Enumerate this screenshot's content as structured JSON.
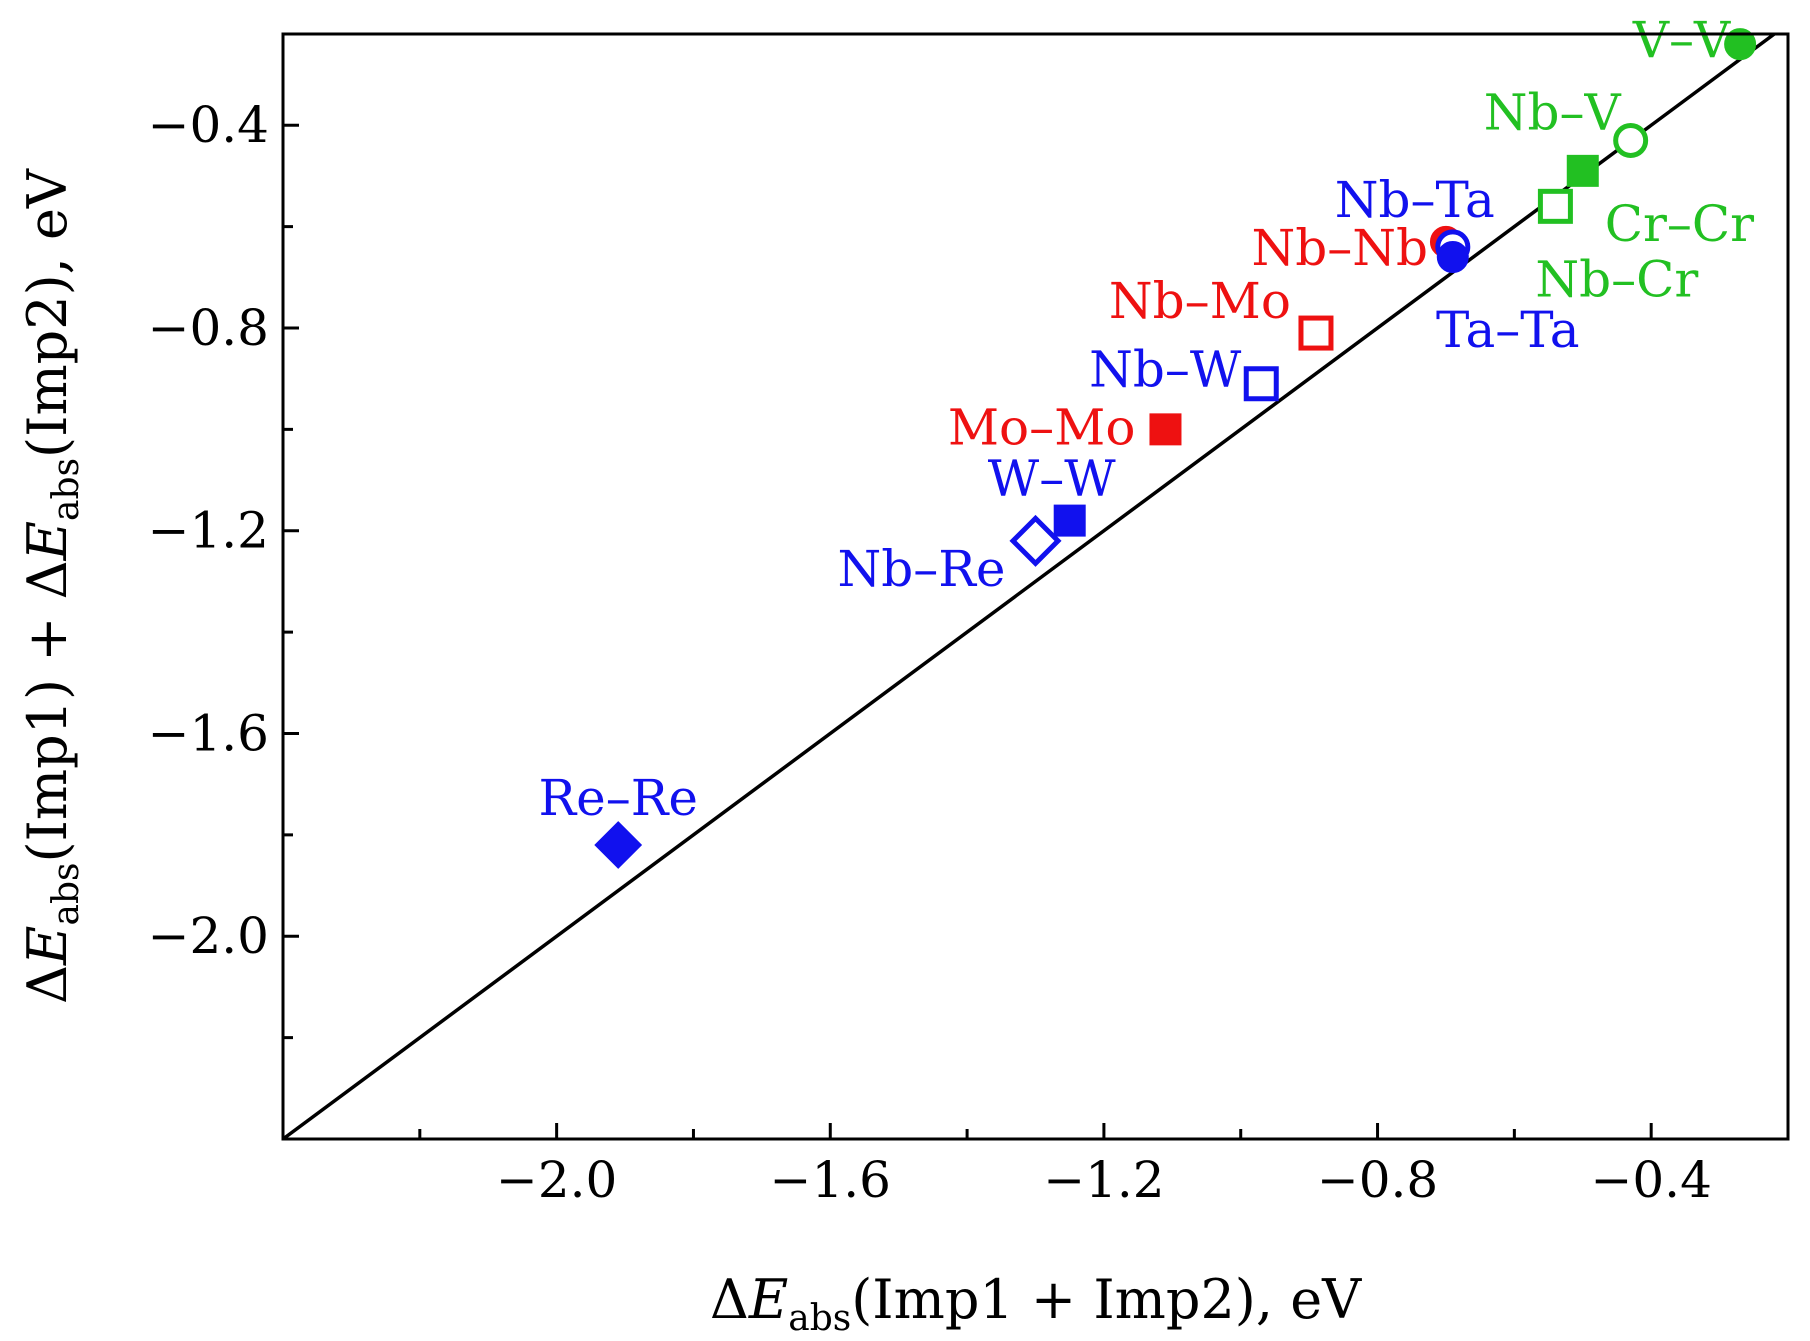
{
  "chart_data": {
    "type": "scatter",
    "xlabel": {
      "prefix": "ΔE",
      "sub": "abs",
      "suffix": "(Imp1 + Imp2), eV"
    },
    "ylabel": {
      "prefix": "ΔE",
      "sub": "abs",
      "suffix": "(Imp1) + ΔE",
      "sub2": "abs",
      "suffix2": "(Imp2), eV"
    },
    "xlim": [
      -2.4,
      -0.2
    ],
    "ylim": [
      -2.4,
      -0.22
    ],
    "x_ticks": [
      -2.0,
      -1.6,
      -1.2,
      -0.8,
      -0.4
    ],
    "x_tick_labels": [
      "−2.0",
      "−1.6",
      "−1.2",
      "−0.8",
      "−0.4"
    ],
    "x_minor_ticks": [
      -2.2,
      -1.8,
      -1.4,
      -1.0,
      -0.6
    ],
    "y_ticks": [
      -2.0,
      -1.6,
      -1.2,
      -0.8,
      -0.4
    ],
    "y_tick_labels": [
      "−2.0",
      "−1.6",
      "−1.2",
      "−0.8",
      "−0.4"
    ],
    "y_minor_ticks": [
      -2.2,
      -1.8,
      -1.4,
      -1.0,
      -0.6
    ],
    "reference_line": "y = x",
    "colors": {
      "group_V": "#22c022",
      "group_Nb": "#ee1111",
      "group_Ta": "#1111ee",
      "line": "#000000"
    },
    "points": [
      {
        "label": "V–V",
        "x": -0.27,
        "y": -0.24,
        "marker": "circle",
        "filled": true,
        "color": "#22c022"
      },
      {
        "label": "Nb–V",
        "x": -0.43,
        "y": -0.43,
        "marker": "circle",
        "filled": false,
        "color": "#22c022"
      },
      {
        "label": "Cr–Cr",
        "x": -0.5,
        "y": -0.49,
        "marker": "square",
        "filled": true,
        "color": "#22c022"
      },
      {
        "label": "Nb–Cr",
        "x": -0.54,
        "y": -0.56,
        "marker": "square",
        "filled": false,
        "color": "#22c022"
      },
      {
        "label": "Nb–Nb",
        "x": -0.7,
        "y": -0.63,
        "marker": "circle",
        "filled": true,
        "color": "#ee1111"
      },
      {
        "label": "Nb–Ta",
        "x": -0.69,
        "y": -0.64,
        "marker": "circle",
        "filled": false,
        "color": "#1111ee"
      },
      {
        "label": "Ta–Ta",
        "x": -0.69,
        "y": -0.66,
        "marker": "circle",
        "filled": true,
        "color": "#1111ee"
      },
      {
        "label": "Nb–Mo",
        "x": -0.89,
        "y": -0.81,
        "marker": "square",
        "filled": false,
        "color": "#ee1111"
      },
      {
        "label": "Nb–W",
        "x": -0.97,
        "y": -0.91,
        "marker": "square",
        "filled": false,
        "color": "#1111ee"
      },
      {
        "label": "Mo–Mo",
        "x": -1.11,
        "y": -1.0,
        "marker": "square",
        "filled": true,
        "color": "#ee1111"
      },
      {
        "label": "W–W",
        "x": -1.25,
        "y": -1.18,
        "marker": "square",
        "filled": true,
        "color": "#1111ee"
      },
      {
        "label": "Nb–Re",
        "x": -1.3,
        "y": -1.22,
        "marker": "diamond",
        "filled": false,
        "color": "#1111ee"
      },
      {
        "label": "Re–Re",
        "x": -1.91,
        "y": -1.82,
        "marker": "diamond",
        "filled": true,
        "color": "#1111ee"
      }
    ]
  }
}
